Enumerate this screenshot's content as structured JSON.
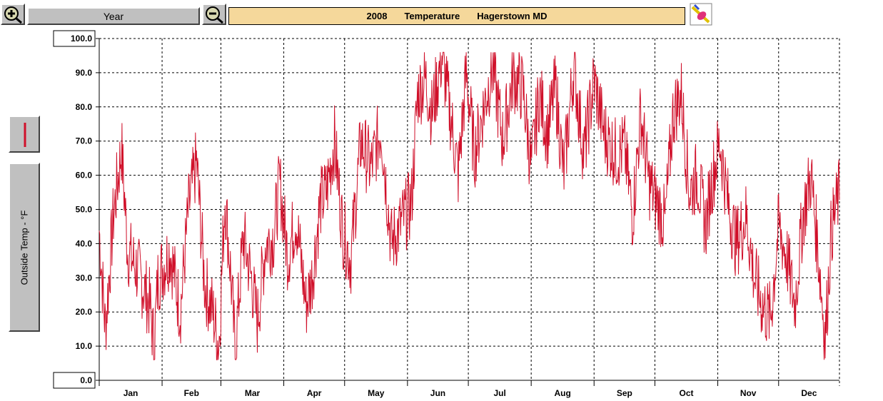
{
  "toolbar": {
    "zoom_in_icon": "magnifier-plus-icon",
    "zoom_out_icon": "magnifier-minus-icon",
    "period_label": "Year",
    "print_icon": "pencil-eraser-icon"
  },
  "header": {
    "year": "2008",
    "measure": "Temperature",
    "station": "Hagerstown MD",
    "background_color": "#f5d89b"
  },
  "sidebar": {
    "axis_label": "Outside Temp - °F",
    "series_color": "#d0102a"
  },
  "chart_data": {
    "type": "line",
    "title": "2008 Temperature Hagerstown MD",
    "ylabel": "Outside Temp - °F",
    "xlabel": "",
    "ylim": [
      0,
      100
    ],
    "y_ticks": [
      "0.0",
      "10.0",
      "20.0",
      "30.0",
      "40.0",
      "50.0",
      "60.0",
      "70.0",
      "80.0",
      "90.0",
      "100.0"
    ],
    "x_ticks": [
      "Jan",
      "Feb",
      "Mar",
      "Apr",
      "May",
      "Jun",
      "Jul",
      "Aug",
      "Sep",
      "Oct",
      "Nov",
      "Dec"
    ],
    "grid": true,
    "series": [
      {
        "color": "#d0102a",
        "x_unit": "day of year",
        "points": [
          [
            1,
            44
          ],
          [
            4,
            15
          ],
          [
            8,
            48
          ],
          [
            12,
            68
          ],
          [
            15,
            38
          ],
          [
            20,
            32
          ],
          [
            26,
            22
          ],
          [
            28,
            10
          ],
          [
            30,
            30
          ],
          [
            36,
            38
          ],
          [
            41,
            20
          ],
          [
            45,
            50
          ],
          [
            49,
            64
          ],
          [
            53,
            28
          ],
          [
            57,
            20
          ],
          [
            60,
            10
          ],
          [
            63,
            54
          ],
          [
            66,
            30
          ],
          [
            68,
            8
          ],
          [
            72,
            42
          ],
          [
            76,
            30
          ],
          [
            79,
            17
          ],
          [
            83,
            40
          ],
          [
            87,
            42
          ],
          [
            90,
            58
          ],
          [
            94,
            36
          ],
          [
            98,
            48
          ],
          [
            103,
            22
          ],
          [
            106,
            30
          ],
          [
            110,
            52
          ],
          [
            113,
            55
          ],
          [
            117,
            70
          ],
          [
            121,
            44
          ],
          [
            125,
            35
          ],
          [
            130,
            70
          ],
          [
            135,
            62
          ],
          [
            140,
            74
          ],
          [
            145,
            40
          ],
          [
            150,
            46
          ],
          [
            155,
            52
          ],
          [
            158,
            84
          ],
          [
            162,
            88
          ],
          [
            165,
            78
          ],
          [
            170,
            95
          ],
          [
            175,
            74
          ],
          [
            178,
            60
          ],
          [
            182,
            90
          ],
          [
            186,
            66
          ],
          [
            190,
            78
          ],
          [
            195,
            92
          ],
          [
            200,
            70
          ],
          [
            205,
            89
          ],
          [
            210,
            85
          ],
          [
            214,
            62
          ],
          [
            218,
            84
          ],
          [
            222,
            72
          ],
          [
            226,
            86
          ],
          [
            230,
            60
          ],
          [
            235,
            92
          ],
          [
            240,
            66
          ],
          [
            245,
            88
          ],
          [
            250,
            72
          ],
          [
            256,
            66
          ],
          [
            260,
            68
          ],
          [
            264,
            48
          ],
          [
            268,
            78
          ],
          [
            272,
            58
          ],
          [
            276,
            52
          ],
          [
            280,
            46
          ],
          [
            284,
            78
          ],
          [
            288,
            84
          ],
          [
            292,
            55
          ],
          [
            296,
            60
          ],
          [
            300,
            45
          ],
          [
            303,
            58
          ],
          [
            307,
            70
          ],
          [
            311,
            52
          ],
          [
            315,
            40
          ],
          [
            320,
            48
          ],
          [
            324,
            30
          ],
          [
            328,
            22
          ],
          [
            332,
            18
          ],
          [
            336,
            45
          ],
          [
            340,
            36
          ],
          [
            344,
            22
          ],
          [
            348,
            48
          ],
          [
            352,
            60
          ],
          [
            356,
            34
          ],
          [
            359,
            12
          ],
          [
            362,
            44
          ],
          [
            366,
            55
          ]
        ]
      }
    ]
  }
}
